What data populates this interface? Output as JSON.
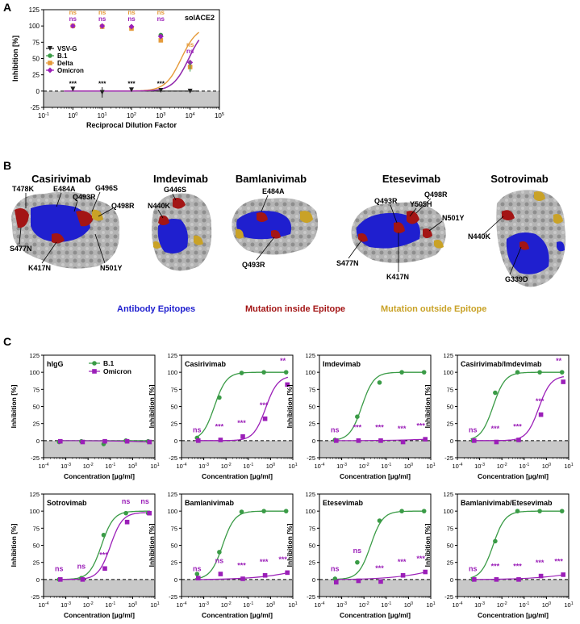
{
  "panel_labels": {
    "a": "A",
    "b": "B",
    "c": "C"
  },
  "colors": {
    "vsvg": "#222222",
    "b1": "#3a9b46",
    "delta": "#e59a3a",
    "omicron": "#9b1fb8",
    "epitope": "#1f1fcf",
    "mut_inside": "#a31515",
    "mut_outside": "#c9a227",
    "surface": "#a9a9a9",
    "shade": "#c8c8c8"
  },
  "legend_b": {
    "epitopes": "Antibody Epitopes",
    "inside": "Mutation inside Epitope",
    "outside": "Mutation outside Epitope"
  },
  "structures": [
    {
      "name": "Casirivimab",
      "labels": [
        "T478K",
        "E484A",
        "Q493R",
        "G496S",
        "Q498R",
        "S477N",
        "K417N",
        "N501Y"
      ]
    },
    {
      "name": "Imdevimab",
      "labels": [
        "G446S",
        "N440K"
      ]
    },
    {
      "name": "Bamlanivimab",
      "labels": [
        "E484A",
        "Q493R"
      ]
    },
    {
      "name": "Etesevimab",
      "labels": [
        "Q493R",
        "Y505H",
        "Q498R",
        "N501Y",
        "S477N",
        "K417N"
      ]
    },
    {
      "name": "Sotrovimab",
      "labels": [
        "N440K",
        "G339D"
      ]
    }
  ],
  "chart_data": [
    {
      "panel": "A",
      "type": "line",
      "annotation": "solACE2",
      "xlabel": "Reciprocal Dilution Factor",
      "ylabel": "Inhibition [%]",
      "xscale": "log",
      "xlim": [
        0.1,
        100000
      ],
      "ylim": [
        -25,
        125
      ],
      "xticks": [
        "10-1",
        "100",
        "101",
        "102",
        "103",
        "104",
        "105"
      ],
      "yticks": [
        "-25",
        "0",
        "25",
        "50",
        "75",
        "100",
        "125"
      ],
      "legend": "top-left",
      "x": [
        1,
        10,
        100,
        1000,
        10000
      ],
      "series": [
        {
          "name": "VSV-G",
          "values": [
            3,
            -2,
            2,
            1,
            0
          ]
        },
        {
          "name": "B.1",
          "values": [
            100,
            99,
            98,
            86,
            38
          ]
        },
        {
          "name": "Delta",
          "values": [
            100,
            99,
            96,
            78,
            37
          ]
        },
        {
          "name": "Omicron",
          "values": [
            100,
            100,
            99,
            84,
            44
          ]
        }
      ],
      "significance": [
        {
          "x": 1,
          "labels": [
            "ns",
            "ns",
            "***"
          ]
        },
        {
          "x": 10,
          "labels": [
            "ns",
            "ns",
            "***"
          ]
        },
        {
          "x": 100,
          "labels": [
            "ns",
            "ns",
            "***"
          ]
        },
        {
          "x": 1000,
          "labels": [
            "ns",
            "ns",
            "***"
          ]
        },
        {
          "x": 10000,
          "labels": [
            "ns",
            "ns"
          ]
        }
      ]
    },
    {
      "panel": "C",
      "type": "line",
      "xlabel": "Concentration [µg/ml]",
      "ylabel": "Inhibition [%]",
      "xscale": "log",
      "xlim": [
        0.0001,
        10
      ],
      "ylim": [
        -25,
        125
      ],
      "xticks": [
        "10-4",
        "10-3",
        "10-2",
        "10-1",
        "100",
        "101"
      ],
      "yticks": [
        "-25",
        "0",
        "25",
        "50",
        "75",
        "100",
        "125"
      ],
      "x": [
        0.0005,
        0.005,
        0.05,
        0.5,
        5
      ],
      "legend_names": [
        "B.1",
        "Omicron"
      ],
      "subplots": [
        {
          "title": "hIgG",
          "b1": [
            -2,
            -1,
            -5,
            0,
            -1
          ],
          "omicron": [
            -1,
            -2,
            -1,
            -1,
            -2
          ],
          "sig": [
            "",
            "",
            "",
            "",
            ""
          ],
          "b1_ec": null,
          "om_ec": null
        },
        {
          "title": "Casirivimab",
          "b1": [
            4,
            63,
            99,
            100,
            100
          ],
          "omicron": [
            0,
            1,
            6,
            32,
            82
          ],
          "sig": [
            "ns",
            "***",
            "***",
            "***",
            "**"
          ],
          "b1_ec": 0.003,
          "om_ec": 0.6
        },
        {
          "title": "Imdevimab",
          "b1": [
            1,
            35,
            85,
            100,
            100
          ],
          "omicron": [
            0,
            0,
            0,
            -2,
            2
          ],
          "sig": [
            "ns",
            "***",
            "***",
            "***",
            "***"
          ],
          "b1_ec": 0.008,
          "om_ec": null
        },
        {
          "title": "Casirivimab/Imdevimab",
          "b1": [
            0,
            70,
            100,
            100,
            100
          ],
          "omicron": [
            0,
            -2,
            1,
            38,
            86
          ],
          "sig": [
            "ns",
            "***",
            "***",
            "***",
            "**"
          ],
          "b1_ec": 0.004,
          "om_ec": 0.45
        },
        {
          "title": "Sotrovimab",
          "b1": [
            0,
            2,
            65,
            97,
            97
          ],
          "omicron": [
            0,
            0,
            16,
            84,
            97
          ],
          "sig": [
            "ns",
            "ns",
            "***",
            "ns",
            "ns"
          ],
          "b1_ec": 0.04,
          "om_ec": 0.1
        },
        {
          "title": "Bamlanivimab",
          "b1": [
            8,
            40,
            99,
            100,
            100
          ],
          "omicron": [
            2,
            8,
            1,
            6,
            10
          ],
          "sig": [
            "ns",
            "ns",
            "***",
            "***",
            "***"
          ],
          "b1_ec": 0.007,
          "om_ec": null
        },
        {
          "title": "Etesevimab",
          "b1": [
            1,
            25,
            86,
            100,
            100
          ],
          "omicron": [
            -4,
            -2,
            -3,
            6,
            11
          ],
          "sig": [
            "ns",
            "ns",
            "***",
            "***",
            "***"
          ],
          "b1_ec": 0.02,
          "om_ec": null
        },
        {
          "title": "Bamlanivimab/Etesevimab",
          "b1": [
            0,
            56,
            100,
            100,
            100
          ],
          "omicron": [
            0,
            0,
            0,
            5,
            7
          ],
          "sig": [
            "ns",
            "***",
            "***",
            "***",
            "***"
          ],
          "b1_ec": 0.004,
          "om_ec": null
        }
      ]
    }
  ]
}
